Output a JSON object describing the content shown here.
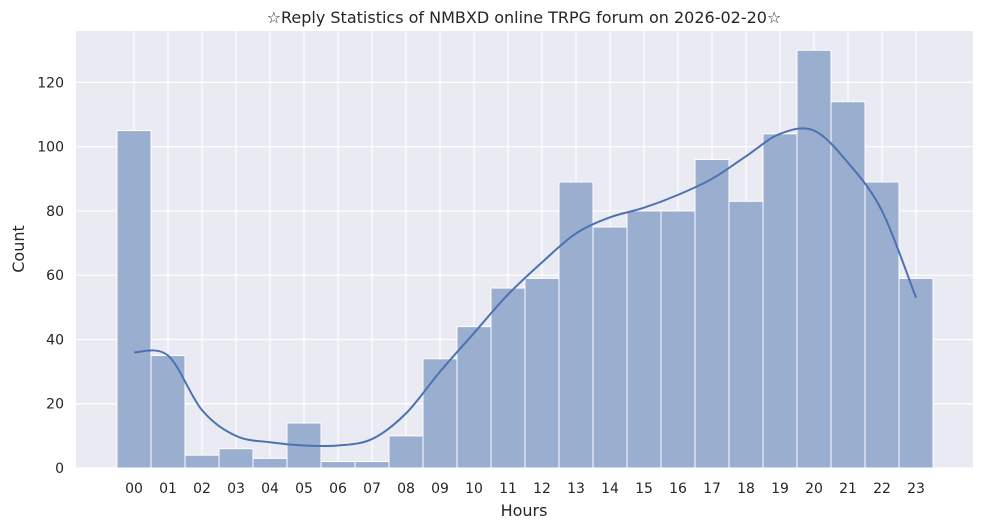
{
  "chart_data": {
    "type": "bar",
    "title": "☆Reply Statistics of NMBXD online TRPG forum on 2026-02-20☆",
    "xlabel": "Hours",
    "ylabel": "Count",
    "categories": [
      "00",
      "01",
      "02",
      "03",
      "04",
      "05",
      "06",
      "07",
      "08",
      "09",
      "10",
      "11",
      "12",
      "13",
      "14",
      "15",
      "16",
      "17",
      "18",
      "19",
      "20",
      "21",
      "22",
      "23"
    ],
    "values": [
      105,
      35,
      4,
      6,
      3,
      14,
      2,
      2,
      10,
      34,
      44,
      56,
      59,
      89,
      75,
      80,
      80,
      96,
      83,
      104,
      130,
      114,
      89,
      59
    ],
    "kde": [
      36,
      35,
      18,
      10,
      8,
      7,
      7,
      9,
      17,
      30,
      42,
      54,
      64,
      73,
      78,
      81,
      85,
      90,
      97,
      104,
      105,
      95,
      80,
      53
    ],
    "ylim": [
      0,
      136
    ],
    "yticks": [
      0,
      20,
      40,
      60,
      80,
      100,
      120
    ],
    "grid": true,
    "colors": {
      "background": "#eaeaf2",
      "bar": "#9aaed0",
      "bar_edge": "#ffffff",
      "line": "#4c72b0",
      "grid": "#ffffff"
    }
  }
}
